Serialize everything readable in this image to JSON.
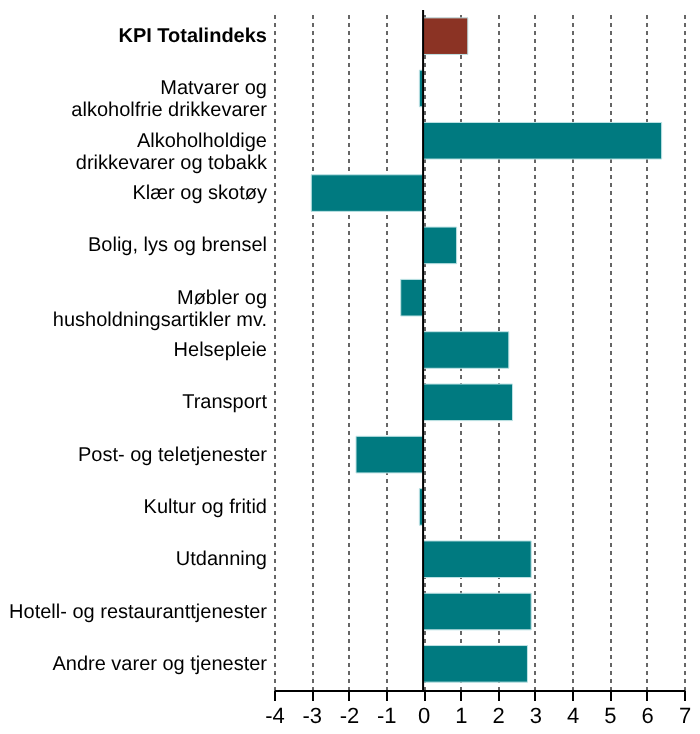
{
  "chart_data": {
    "type": "bar",
    "orientation": "horizontal",
    "categories": [
      "KPI Totalindeks",
      "Matvarer og\nalkoholfrie drikkevarer",
      "Alkoholholdige\ndrikkevarer og tobakk",
      "Klær og skotøy",
      "Bolig, lys og brensel",
      "Møbler og\nhusholdningsartikler mv.",
      "Helsepleie",
      "Transport",
      "Post- og teletjenester",
      "Kultur og fritid",
      "Utdanning",
      "Hotell- og restauranttjenester",
      "Andre varer og tjenester"
    ],
    "values": [
      1.2,
      -0.1,
      6.4,
      -3.0,
      0.9,
      -0.6,
      2.3,
      2.4,
      -1.8,
      -0.1,
      2.9,
      2.9,
      2.8
    ],
    "colors": [
      "#8b3324",
      "#007a80",
      "#007a80",
      "#007a80",
      "#007a80",
      "#007a80",
      "#007a80",
      "#007a80",
      "#007a80",
      "#007a80",
      "#007a80",
      "#007a80",
      "#007a80"
    ],
    "xlim": [
      -4,
      7
    ],
    "xticks": [
      -4,
      -3,
      -2,
      -1,
      0,
      1,
      2,
      3,
      4,
      5,
      6,
      7
    ],
    "grid": "x"
  }
}
